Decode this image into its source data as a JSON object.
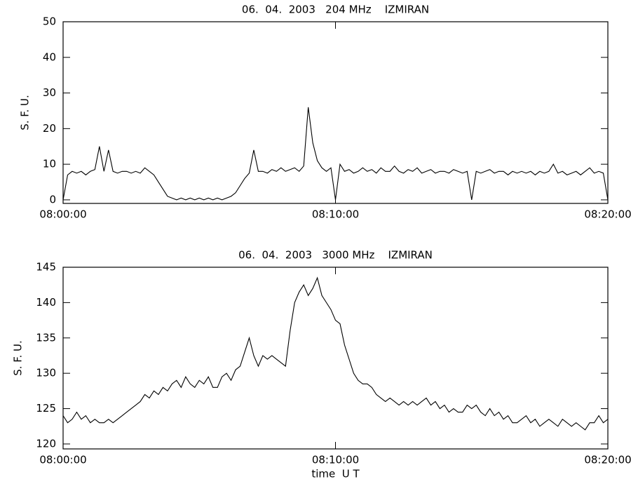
{
  "chart_data": [
    {
      "type": "line",
      "title": "06.  04.  2003   204 MHz    IZMIRAN",
      "y_label": "S. F. U.",
      "color": "#000000",
      "xlim": [
        "08:00:00",
        "08:20:00"
      ],
      "xticks": [
        "08:00:00",
        "08:10:00",
        "08:20:00"
      ],
      "ylim": [
        -1,
        50
      ],
      "yticks": [
        0,
        10,
        20,
        30,
        40,
        50
      ],
      "x": [
        "08:00:00",
        "08:00:10",
        "08:00:20",
        "08:00:30",
        "08:00:40",
        "08:00:50",
        "08:01:00",
        "08:01:10",
        "08:01:20",
        "08:01:30",
        "08:01:40",
        "08:01:50",
        "08:02:00",
        "08:02:10",
        "08:02:20",
        "08:02:30",
        "08:02:40",
        "08:02:50",
        "08:03:00",
        "08:03:10",
        "08:03:20",
        "08:03:30",
        "08:03:40",
        "08:03:50",
        "08:04:00",
        "08:04:10",
        "08:04:20",
        "08:04:30",
        "08:04:40",
        "08:04:50",
        "08:05:00",
        "08:05:10",
        "08:05:20",
        "08:05:30",
        "08:05:40",
        "08:05:50",
        "08:06:00",
        "08:06:10",
        "08:06:20",
        "08:06:30",
        "08:06:40",
        "08:06:50",
        "08:07:00",
        "08:07:10",
        "08:07:20",
        "08:07:30",
        "08:07:40",
        "08:07:50",
        "08:08:00",
        "08:08:10",
        "08:08:20",
        "08:08:30",
        "08:08:40",
        "08:08:50",
        "08:09:00",
        "08:09:10",
        "08:09:20",
        "08:09:30",
        "08:09:40",
        "08:09:50",
        "08:10:00",
        "08:10:10",
        "08:10:20",
        "08:10:30",
        "08:10:40",
        "08:10:50",
        "08:11:00",
        "08:11:10",
        "08:11:20",
        "08:11:30",
        "08:11:40",
        "08:11:50",
        "08:12:00",
        "08:12:10",
        "08:12:20",
        "08:12:30",
        "08:12:40",
        "08:12:50",
        "08:13:00",
        "08:13:10",
        "08:13:20",
        "08:13:30",
        "08:13:40",
        "08:13:50",
        "08:14:00",
        "08:14:10",
        "08:14:20",
        "08:14:30",
        "08:14:40",
        "08:14:50",
        "08:15:00",
        "08:15:10",
        "08:15:20",
        "08:15:30",
        "08:15:40",
        "08:15:50",
        "08:16:00",
        "08:16:10",
        "08:16:20",
        "08:16:30",
        "08:16:40",
        "08:16:50",
        "08:17:00",
        "08:17:10",
        "08:17:20",
        "08:17:30",
        "08:17:40",
        "08:17:50",
        "08:18:00",
        "08:18:10",
        "08:18:20",
        "08:18:30",
        "08:18:40",
        "08:18:50",
        "08:19:00",
        "08:19:10",
        "08:19:20",
        "08:19:30",
        "08:19:40",
        "08:19:50",
        "08:20:00"
      ],
      "values": [
        0,
        7,
        8,
        7.5,
        8,
        7,
        8,
        8.5,
        15,
        8,
        14,
        8,
        7.5,
        8,
        8,
        7.5,
        8,
        7.5,
        9,
        8,
        7,
        5,
        3,
        1,
        0.5,
        0,
        0.5,
        0,
        0.5,
        0,
        0.5,
        0,
        0.5,
        0,
        0.5,
        0,
        0.5,
        1,
        2,
        4,
        6,
        7.5,
        14,
        8,
        8,
        7.5,
        8.5,
        8,
        9,
        8,
        8.5,
        9,
        8,
        9.5,
        26,
        16,
        11,
        9,
        8,
        9,
        0,
        10,
        8,
        8.5,
        7.5,
        8,
        9,
        8,
        8.5,
        7.5,
        9,
        8,
        8,
        9.5,
        8,
        7.5,
        8.5,
        8,
        9,
        7.5,
        8,
        8.5,
        7.5,
        8,
        8,
        7.5,
        8.5,
        8,
        7.5,
        8,
        0,
        8,
        7.5,
        8,
        8.5,
        7.5,
        8,
        8,
        7,
        8,
        7.5,
        8,
        7.5,
        8,
        7,
        8,
        7.5,
        8,
        10,
        7.5,
        8,
        7,
        7.5,
        8,
        7,
        8,
        9,
        7.5,
        8,
        7.5,
        0
      ]
    },
    {
      "type": "line",
      "title": "06.  04.  2003   3000 MHz    IZMIRAN",
      "y_label": "S. F. U.",
      "x_label": "time  U T",
      "color": "#000000",
      "xlim": [
        "08:00:00",
        "08:20:00"
      ],
      "xticks": [
        "08:00:00",
        "08:10:00",
        "08:20:00"
      ],
      "ylim": [
        119.3,
        145
      ],
      "yticks": [
        120,
        125,
        130,
        135,
        140,
        145
      ],
      "x": [
        "08:00:00",
        "08:00:10",
        "08:00:20",
        "08:00:30",
        "08:00:40",
        "08:00:50",
        "08:01:00",
        "08:01:10",
        "08:01:20",
        "08:01:30",
        "08:01:40",
        "08:01:50",
        "08:02:00",
        "08:02:10",
        "08:02:20",
        "08:02:30",
        "08:02:40",
        "08:02:50",
        "08:03:00",
        "08:03:10",
        "08:03:20",
        "08:03:30",
        "08:03:40",
        "08:03:50",
        "08:04:00",
        "08:04:10",
        "08:04:20",
        "08:04:30",
        "08:04:40",
        "08:04:50",
        "08:05:00",
        "08:05:10",
        "08:05:20",
        "08:05:30",
        "08:05:40",
        "08:05:50",
        "08:06:00",
        "08:06:10",
        "08:06:20",
        "08:06:30",
        "08:06:40",
        "08:06:50",
        "08:07:00",
        "08:07:10",
        "08:07:20",
        "08:07:30",
        "08:07:40",
        "08:07:50",
        "08:08:00",
        "08:08:10",
        "08:08:20",
        "08:08:30",
        "08:08:40",
        "08:08:50",
        "08:09:00",
        "08:09:10",
        "08:09:20",
        "08:09:30",
        "08:09:40",
        "08:09:50",
        "08:10:00",
        "08:10:10",
        "08:10:20",
        "08:10:30",
        "08:10:40",
        "08:10:50",
        "08:11:00",
        "08:11:10",
        "08:11:20",
        "08:11:30",
        "08:11:40",
        "08:11:50",
        "08:12:00",
        "08:12:10",
        "08:12:20",
        "08:12:30",
        "08:12:40",
        "08:12:50",
        "08:13:00",
        "08:13:10",
        "08:13:20",
        "08:13:30",
        "08:13:40",
        "08:13:50",
        "08:14:00",
        "08:14:10",
        "08:14:20",
        "08:14:30",
        "08:14:40",
        "08:14:50",
        "08:15:00",
        "08:15:10",
        "08:15:20",
        "08:15:30",
        "08:15:40",
        "08:15:50",
        "08:16:00",
        "08:16:10",
        "08:16:20",
        "08:16:30",
        "08:16:40",
        "08:16:50",
        "08:17:00",
        "08:17:10",
        "08:17:20",
        "08:17:30",
        "08:17:40",
        "08:17:50",
        "08:18:00",
        "08:18:10",
        "08:18:20",
        "08:18:30",
        "08:18:40",
        "08:18:50",
        "08:19:00",
        "08:19:10",
        "08:19:20",
        "08:19:30",
        "08:19:40",
        "08:19:50",
        "08:20:00"
      ],
      "values": [
        124,
        123,
        123.5,
        124.5,
        123.5,
        124,
        123,
        123.5,
        123,
        123,
        123.5,
        123,
        123.5,
        124,
        124.5,
        125,
        125.5,
        126,
        127,
        126.5,
        127.5,
        127,
        128,
        127.5,
        128.5,
        129,
        128,
        129.5,
        128.5,
        128,
        129,
        128.5,
        129.5,
        128,
        128,
        129.5,
        130,
        129,
        130.5,
        131,
        133,
        135,
        132.5,
        131,
        132.5,
        132,
        132.5,
        132,
        131.5,
        131,
        136,
        140,
        141.5,
        142.5,
        141,
        142,
        143.5,
        141,
        140,
        139,
        137.5,
        137,
        134,
        132,
        130,
        129,
        128.5,
        128.5,
        128,
        127,
        126.5,
        126,
        126.5,
        126,
        125.5,
        126,
        125.5,
        126,
        125.5,
        126,
        126.5,
        125.5,
        126,
        125,
        125.5,
        124.5,
        125,
        124.5,
        124.5,
        125.5,
        125,
        125.5,
        124.5,
        124,
        125,
        124,
        124.5,
        123.5,
        124,
        123,
        123,
        123.5,
        124,
        123,
        123.5,
        122.5,
        123,
        123.5,
        123,
        122.5,
        123.5,
        123,
        122.5,
        123,
        122.5,
        122,
        123,
        123,
        124,
        123,
        123.5
      ]
    }
  ]
}
